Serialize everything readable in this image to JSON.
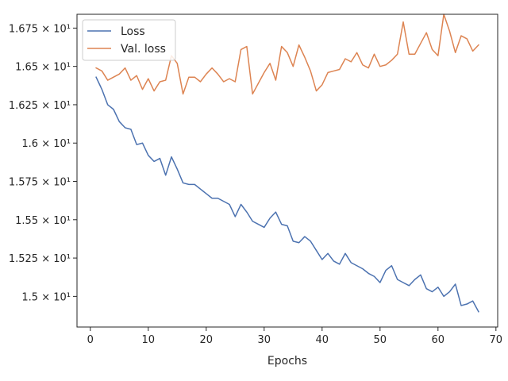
{
  "chart_data": {
    "type": "line",
    "title": "",
    "xlabel": "Epochs",
    "ylabel": "",
    "xlim": [
      -2.3,
      70.3
    ],
    "ylim": [
      14.8,
      16.84
    ],
    "grid": false,
    "legend_position": "top-left",
    "x_ticks": [
      {
        "value": 0,
        "label": "0"
      },
      {
        "value": 10,
        "label": "10"
      },
      {
        "value": 20,
        "label": "20"
      },
      {
        "value": 30,
        "label": "30"
      },
      {
        "value": 40,
        "label": "40"
      },
      {
        "value": 50,
        "label": "50"
      },
      {
        "value": 60,
        "label": "60"
      },
      {
        "value": 70,
        "label": "70"
      }
    ],
    "y_ticks": [
      {
        "value": 15.0,
        "label": "1.5 × 10¹"
      },
      {
        "value": 15.25,
        "label": "1.525 × 10¹"
      },
      {
        "value": 15.5,
        "label": "1.55 × 10¹"
      },
      {
        "value": 15.75,
        "label": "1.575 × 10¹"
      },
      {
        "value": 16.0,
        "label": "1.6 × 10¹"
      },
      {
        "value": 16.25,
        "label": "1.625 × 10¹"
      },
      {
        "value": 16.5,
        "label": "1.65 × 10¹"
      },
      {
        "value": 16.75,
        "label": "1.675 × 10¹"
      }
    ],
    "x": [
      1,
      2,
      3,
      4,
      5,
      6,
      7,
      8,
      9,
      10,
      11,
      12,
      13,
      14,
      15,
      16,
      17,
      18,
      19,
      20,
      21,
      22,
      23,
      24,
      25,
      26,
      27,
      28,
      29,
      30,
      31,
      32,
      33,
      34,
      35,
      36,
      37,
      38,
      39,
      40,
      41,
      42,
      43,
      44,
      45,
      46,
      47,
      48,
      49,
      50,
      51,
      52,
      53,
      54,
      55,
      56,
      57,
      58,
      59,
      60,
      61,
      62,
      63,
      64,
      65,
      66,
      67
    ],
    "series": [
      {
        "name": "Loss",
        "color": "#4c72b0",
        "values": [
          16.43,
          16.35,
          16.25,
          16.22,
          16.14,
          16.1,
          16.09,
          15.99,
          16.0,
          15.92,
          15.88,
          15.9,
          15.79,
          15.91,
          15.83,
          15.74,
          15.73,
          15.73,
          15.7,
          15.67,
          15.64,
          15.64,
          15.62,
          15.6,
          15.52,
          15.6,
          15.55,
          15.49,
          15.47,
          15.45,
          15.51,
          15.55,
          15.47,
          15.46,
          15.36,
          15.35,
          15.39,
          15.36,
          15.3,
          15.24,
          15.28,
          15.23,
          15.21,
          15.28,
          15.22,
          15.2,
          15.18,
          15.15,
          15.13,
          15.09,
          15.17,
          15.2,
          15.11,
          15.09,
          15.07,
          15.11,
          15.14,
          15.05,
          15.03,
          15.06,
          15.0,
          15.03,
          15.08,
          14.94,
          14.95,
          14.97,
          14.9
        ]
      },
      {
        "name": "Val. loss",
        "color": "#dd8452",
        "values": [
          16.49,
          16.47,
          16.41,
          16.43,
          16.45,
          16.49,
          16.41,
          16.44,
          16.35,
          16.42,
          16.34,
          16.4,
          16.41,
          16.57,
          16.52,
          16.32,
          16.43,
          16.43,
          16.4,
          16.45,
          16.49,
          16.45,
          16.4,
          16.42,
          16.4,
          16.61,
          16.63,
          16.32,
          16.39,
          16.46,
          16.52,
          16.41,
          16.63,
          16.59,
          16.5,
          16.64,
          16.56,
          16.47,
          16.34,
          16.38,
          16.46,
          16.47,
          16.48,
          16.55,
          16.53,
          16.59,
          16.51,
          16.49,
          16.58,
          16.5,
          16.51,
          16.54,
          16.58,
          16.79,
          16.58,
          16.58,
          16.65,
          16.72,
          16.61,
          16.57,
          16.84,
          16.73,
          16.59,
          16.7,
          16.68,
          16.6,
          16.64
        ]
      }
    ]
  }
}
